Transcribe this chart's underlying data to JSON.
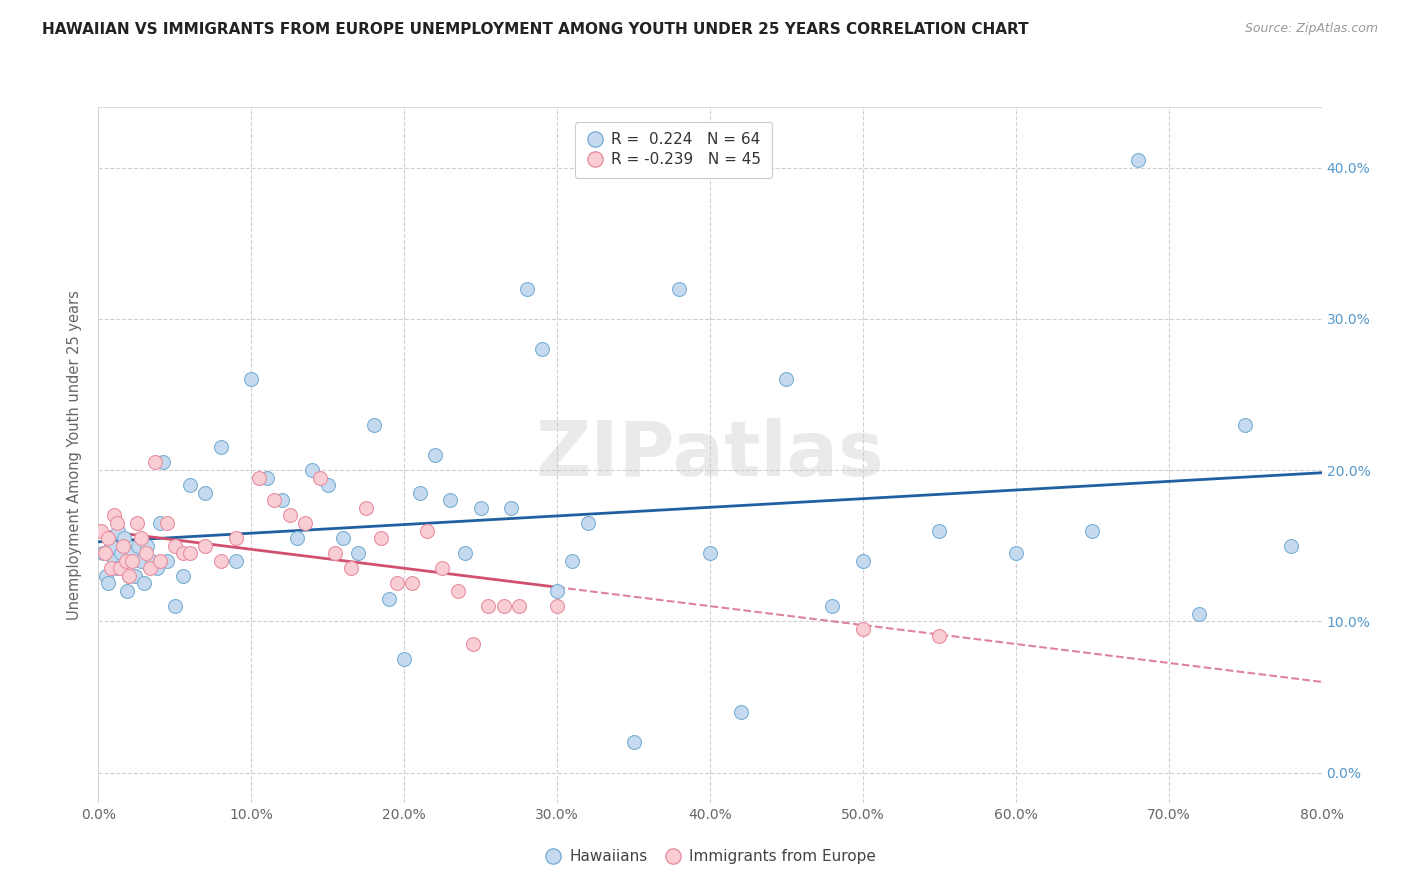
{
  "title": "HAWAIIAN VS IMMIGRANTS FROM EUROPE UNEMPLOYMENT AMONG YOUTH UNDER 25 YEARS CORRELATION CHART",
  "source": "Source: ZipAtlas.com",
  "ylabel": "Unemployment Among Youth under 25 years",
  "xlabel_vals": [
    0,
    10,
    20,
    30,
    40,
    50,
    60,
    70,
    80
  ],
  "ytick_vals": [
    0,
    10,
    20,
    30,
    40
  ],
  "xlim": [
    0,
    80
  ],
  "ylim": [
    -2,
    44
  ],
  "blue_R": 0.224,
  "blue_N": 64,
  "pink_R": -0.239,
  "pink_N": 45,
  "blue_color": "#c5daee",
  "blue_edge": "#7ab0d4",
  "pink_color": "#f9cdd4",
  "pink_edge": "#e88fa0",
  "blue_line_color": "#2060a0",
  "pink_line_color": "#d05070",
  "marker_size": 100,
  "watermark": "ZIPatlas",
  "hawaiians_x": [
    0.3,
    0.5,
    0.6,
    0.8,
    1.0,
    1.2,
    1.3,
    1.5,
    1.7,
    1.9,
    2.0,
    2.2,
    2.4,
    2.6,
    2.8,
    3.0,
    3.2,
    3.5,
    3.8,
    4.0,
    4.2,
    4.5,
    5.0,
    5.5,
    6.0,
    7.0,
    8.0,
    9.0,
    10.0,
    11.0,
    12.0,
    13.0,
    14.0,
    15.0,
    16.0,
    17.0,
    18.0,
    19.0,
    20.0,
    21.0,
    22.0,
    23.0,
    24.0,
    25.0,
    27.0,
    28.0,
    29.0,
    30.0,
    31.0,
    32.0,
    35.0,
    38.0,
    40.0,
    42.0,
    45.0,
    48.0,
    50.0,
    55.0,
    60.0,
    65.0,
    68.0,
    72.0,
    75.0,
    78.0
  ],
  "hawaiians_y": [
    14.5,
    13.0,
    12.5,
    15.0,
    14.0,
    13.5,
    16.0,
    14.5,
    15.5,
    12.0,
    13.0,
    14.5,
    13.0,
    15.0,
    14.0,
    12.5,
    15.0,
    14.0,
    13.5,
    16.5,
    20.5,
    14.0,
    11.0,
    13.0,
    19.0,
    18.5,
    21.5,
    14.0,
    26.0,
    19.5,
    18.0,
    15.5,
    20.0,
    19.0,
    15.5,
    14.5,
    23.0,
    11.5,
    7.5,
    18.5,
    21.0,
    18.0,
    14.5,
    17.5,
    17.5,
    32.0,
    28.0,
    12.0,
    14.0,
    16.5,
    2.0,
    32.0,
    14.5,
    4.0,
    26.0,
    11.0,
    14.0,
    16.0,
    14.5,
    16.0,
    40.5,
    10.5,
    23.0,
    15.0
  ],
  "europe_x": [
    0.2,
    0.4,
    0.6,
    0.8,
    1.0,
    1.2,
    1.4,
    1.6,
    1.8,
    2.0,
    2.2,
    2.5,
    2.8,
    3.1,
    3.4,
    3.7,
    4.0,
    4.5,
    5.0,
    5.5,
    6.0,
    7.0,
    8.0,
    9.0,
    10.5,
    11.5,
    12.5,
    13.5,
    14.5,
    15.5,
    16.5,
    17.5,
    18.5,
    19.5,
    20.5,
    21.5,
    22.5,
    23.5,
    24.5,
    25.5,
    26.5,
    27.5,
    30.0,
    50.0,
    55.0
  ],
  "europe_y": [
    16.0,
    14.5,
    15.5,
    13.5,
    17.0,
    16.5,
    13.5,
    15.0,
    14.0,
    13.0,
    14.0,
    16.5,
    15.5,
    14.5,
    13.5,
    20.5,
    14.0,
    16.5,
    15.0,
    14.5,
    14.5,
    15.0,
    14.0,
    15.5,
    19.5,
    18.0,
    17.0,
    16.5,
    19.5,
    14.5,
    13.5,
    17.5,
    15.5,
    12.5,
    12.5,
    16.0,
    13.5,
    12.0,
    8.5,
    11.0,
    11.0,
    11.0,
    11.0,
    9.5,
    9.0
  ]
}
